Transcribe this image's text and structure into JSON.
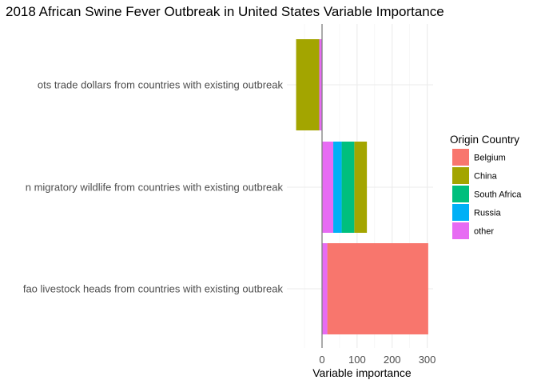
{
  "chart_data": {
    "type": "bar",
    "orientation": "horizontal",
    "stacked": true,
    "title": "2018 African Swine Fever Outbreak in United States Variable Importance",
    "xlabel": "Variable importance",
    "ylabel": "",
    "xlim": [
      -55,
      325
    ],
    "x_ticks": [
      0,
      100,
      200,
      300
    ],
    "grid": true,
    "zero_line": true,
    "categories": [
      "ots trade dollars from countries with existing outbreak",
      "n migratory wildlife from countries with existing outbreak",
      "fao livestock heads from countries with existing outbreak"
    ],
    "legend": {
      "title": "Origin Country",
      "placement": "right",
      "entries": [
        "Belgium",
        "China",
        "South Africa",
        "Russia",
        "other"
      ]
    },
    "series": [
      {
        "name": "Belgium",
        "color": "#F8766D",
        "segments": [
          [
            0,
            0
          ],
          [
            0,
            0
          ],
          [
            15,
            303
          ]
        ]
      },
      {
        "name": "China",
        "color": "#A3A500",
        "segments": [
          [
            -74,
            -8
          ],
          [
            92,
            128
          ],
          [
            0,
            0
          ]
        ]
      },
      {
        "name": "South Africa",
        "color": "#00BF7D",
        "segments": [
          [
            0,
            0
          ],
          [
            56,
            92
          ],
          [
            0,
            0
          ]
        ]
      },
      {
        "name": "Russia",
        "color": "#00B0F6",
        "segments": [
          [
            0,
            0
          ],
          [
            32,
            56
          ],
          [
            0,
            0
          ]
        ]
      },
      {
        "name": "other",
        "color": "#E76BF3",
        "segments": [
          [
            -8,
            0
          ],
          [
            0,
            32
          ],
          [
            0,
            15
          ]
        ]
      }
    ]
  }
}
